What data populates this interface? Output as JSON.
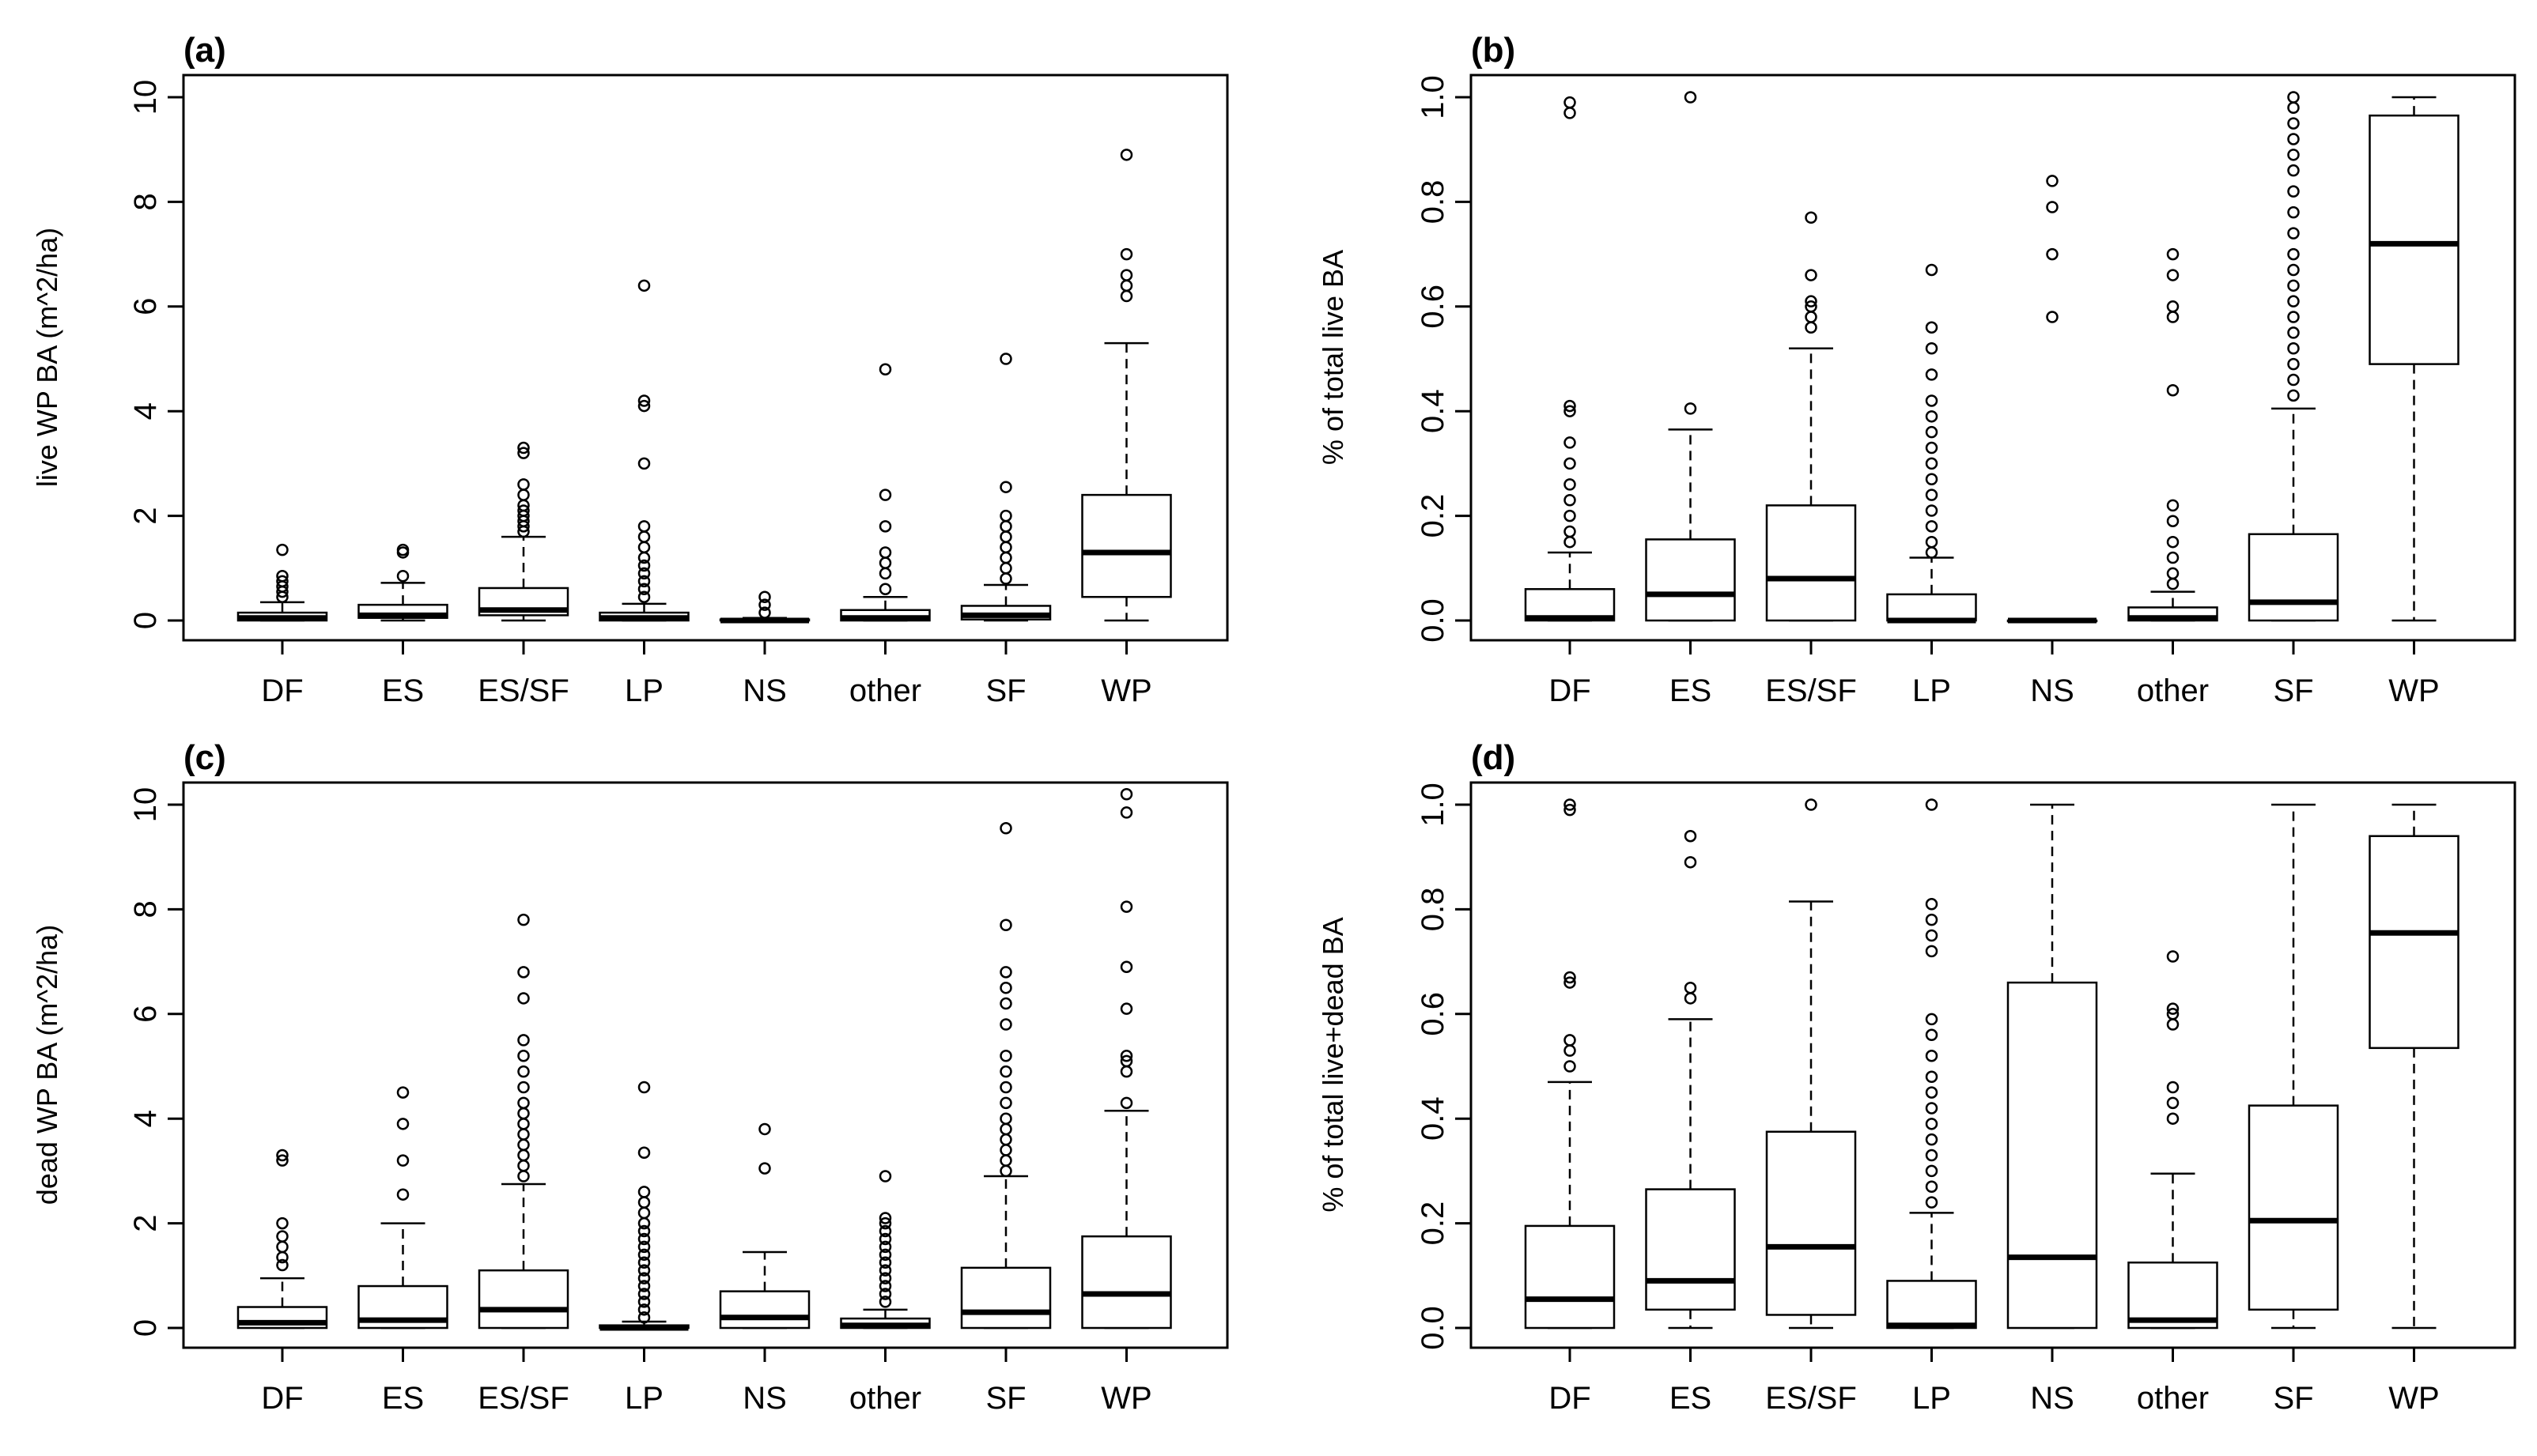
{
  "chart_data": [
    {
      "panel_label": "(a)",
      "type": "boxplot",
      "ylabel": "live WP BA (m^2/ha)",
      "categories": [
        "DF",
        "ES",
        "ES/SF",
        "LP",
        "NS",
        "other",
        "SF",
        "WP"
      ],
      "ylim": [
        0,
        10
      ],
      "yticks": [
        0,
        2,
        4,
        6,
        8,
        10
      ],
      "ytick_labels": [
        "0",
        "2",
        "4",
        "6",
        "8",
        "10"
      ],
      "boxes": [
        {
          "whislo": 0,
          "q1": 0.0,
          "med": 0.05,
          "q3": 0.15,
          "whishi": 0.35,
          "fliers": [
            0.45,
            0.55,
            0.65,
            0.75,
            0.85,
            1.35
          ]
        },
        {
          "whislo": 0,
          "q1": 0.05,
          "med": 0.1,
          "q3": 0.3,
          "whishi": 0.72,
          "fliers": [
            0.85,
            1.3,
            1.35
          ]
        },
        {
          "whislo": 0,
          "q1": 0.1,
          "med": 0.2,
          "q3": 0.62,
          "whishi": 1.6,
          "fliers": [
            1.7,
            1.8,
            1.9,
            2.0,
            2.1,
            2.2,
            2.4,
            2.6,
            3.2,
            3.3
          ]
        },
        {
          "whislo": 0,
          "q1": 0.0,
          "med": 0.05,
          "q3": 0.15,
          "whishi": 0.32,
          "fliers": [
            0.45,
            0.6,
            0.75,
            0.9,
            1.05,
            1.2,
            1.4,
            1.6,
            1.8,
            3.0,
            4.1,
            4.2,
            6.4
          ]
        },
        {
          "whislo": 0,
          "q1": 0.0,
          "med": 0.0,
          "q3": 0.02,
          "whishi": 0.05,
          "fliers": [
            0.15,
            0.3,
            0.45
          ]
        },
        {
          "whislo": 0,
          "q1": 0.0,
          "med": 0.05,
          "q3": 0.2,
          "whishi": 0.45,
          "fliers": [
            0.6,
            0.9,
            1.1,
            1.3,
            1.8,
            2.4,
            4.8
          ]
        },
        {
          "whislo": 0,
          "q1": 0.02,
          "med": 0.1,
          "q3": 0.28,
          "whishi": 0.68,
          "fliers": [
            0.8,
            1.0,
            1.2,
            1.4,
            1.6,
            1.8,
            2.0,
            2.55,
            5.0
          ]
        },
        {
          "whislo": 0,
          "q1": 0.45,
          "med": 1.3,
          "q3": 2.4,
          "whishi": 5.3,
          "fliers": [
            6.2,
            6.4,
            6.6,
            7.0,
            8.9
          ]
        }
      ]
    },
    {
      "panel_label": "(b)",
      "type": "boxplot",
      "ylabel": "% of total live BA",
      "categories": [
        "DF",
        "ES",
        "ES/SF",
        "LP",
        "NS",
        "other",
        "SF",
        "WP"
      ],
      "ylim": [
        0,
        1.0
      ],
      "yticks": [
        0,
        0.2,
        0.4,
        0.6,
        0.8,
        1.0
      ],
      "ytick_labels": [
        "0.0",
        "0.2",
        "0.4",
        "0.6",
        "0.8",
        "1.0"
      ],
      "boxes": [
        {
          "whislo": 0,
          "q1": 0.0,
          "med": 0.005,
          "q3": 0.06,
          "whishi": 0.13,
          "fliers": [
            0.15,
            0.17,
            0.2,
            0.23,
            0.26,
            0.3,
            0.34,
            0.4,
            0.41,
            0.97,
            0.99
          ]
        },
        {
          "whislo": 0,
          "q1": 0.0,
          "med": 0.05,
          "q3": 0.155,
          "whishi": 0.365,
          "fliers": [
            0.405,
            1.0
          ]
        },
        {
          "whislo": 0,
          "q1": 0.0,
          "med": 0.08,
          "q3": 0.22,
          "whishi": 0.52,
          "fliers": [
            0.56,
            0.58,
            0.6,
            0.61,
            0.66,
            0.77
          ]
        },
        {
          "whislo": 0,
          "q1": 0.0,
          "med": 0.0,
          "q3": 0.05,
          "whishi": 0.12,
          "fliers": [
            0.13,
            0.15,
            0.18,
            0.21,
            0.24,
            0.27,
            0.3,
            0.33,
            0.36,
            0.39,
            0.42,
            0.47,
            0.52,
            0.56,
            0.67
          ]
        },
        {
          "whislo": 0,
          "q1": 0.0,
          "med": 0.0,
          "q3": 0.0,
          "whishi": 0.0,
          "fliers": [
            0.58,
            0.7,
            0.79,
            0.84
          ]
        },
        {
          "whislo": 0,
          "q1": 0.0,
          "med": 0.005,
          "q3": 0.025,
          "whishi": 0.055,
          "fliers": [
            0.07,
            0.09,
            0.12,
            0.15,
            0.19,
            0.22,
            0.44,
            0.58,
            0.6,
            0.66,
            0.7
          ]
        },
        {
          "whislo": 0,
          "q1": 0.0,
          "med": 0.035,
          "q3": 0.165,
          "whishi": 0.405,
          "fliers": [
            0.43,
            0.46,
            0.49,
            0.52,
            0.55,
            0.58,
            0.61,
            0.64,
            0.67,
            0.7,
            0.74,
            0.78,
            0.82,
            0.86,
            0.89,
            0.92,
            0.95,
            0.98,
            1.0
          ]
        },
        {
          "whislo": 0,
          "q1": 0.49,
          "med": 0.72,
          "q3": 0.965,
          "whishi": 1.0,
          "fliers": []
        }
      ]
    },
    {
      "panel_label": "(c)",
      "type": "boxplot",
      "ylabel": "dead WP BA (m^2/ha)",
      "categories": [
        "DF",
        "ES",
        "ES/SF",
        "LP",
        "NS",
        "other",
        "SF",
        "WP"
      ],
      "ylim": [
        0,
        10
      ],
      "yticks": [
        0,
        2,
        4,
        6,
        8,
        10
      ],
      "ytick_labels": [
        "0",
        "2",
        "4",
        "6",
        "8",
        "10"
      ],
      "boxes": [
        {
          "whislo": 0,
          "q1": 0.0,
          "med": 0.1,
          "q3": 0.4,
          "whishi": 0.95,
          "fliers": [
            1.2,
            1.35,
            1.55,
            1.75,
            2.0,
            3.2,
            3.3
          ]
        },
        {
          "whislo": 0,
          "q1": 0.0,
          "med": 0.15,
          "q3": 0.8,
          "whishi": 2.0,
          "fliers": [
            2.55,
            3.2,
            3.9,
            4.5
          ]
        },
        {
          "whislo": 0,
          "q1": 0.0,
          "med": 0.35,
          "q3": 1.1,
          "whishi": 2.75,
          "fliers": [
            2.9,
            3.1,
            3.3,
            3.5,
            3.7,
            3.9,
            4.1,
            4.3,
            4.6,
            4.9,
            5.2,
            5.5,
            6.3,
            6.8,
            7.8
          ]
        },
        {
          "whislo": 0,
          "q1": 0.0,
          "med": 0.0,
          "q3": 0.05,
          "whishi": 0.12,
          "fliers": [
            0.2,
            0.35,
            0.5,
            0.65,
            0.8,
            0.95,
            1.1,
            1.25,
            1.4,
            1.55,
            1.7,
            1.85,
            2.0,
            2.2,
            2.4,
            2.6,
            3.35,
            4.6
          ]
        },
        {
          "whislo": 0,
          "q1": 0.0,
          "med": 0.2,
          "q3": 0.7,
          "whishi": 1.45,
          "fliers": [
            3.05,
            3.8
          ]
        },
        {
          "whislo": 0,
          "q1": 0.0,
          "med": 0.05,
          "q3": 0.18,
          "whishi": 0.35,
          "fliers": [
            0.5,
            0.65,
            0.8,
            0.95,
            1.1,
            1.25,
            1.4,
            1.55,
            1.7,
            1.85,
            2.0,
            2.1,
            2.9
          ]
        },
        {
          "whislo": 0,
          "q1": 0.0,
          "med": 0.3,
          "q3": 1.15,
          "whishi": 2.9,
          "fliers": [
            3.0,
            3.2,
            3.4,
            3.6,
            3.8,
            4.0,
            4.3,
            4.6,
            4.9,
            5.2,
            5.8,
            6.2,
            6.5,
            6.8,
            7.7,
            9.55
          ]
        },
        {
          "whislo": 0,
          "q1": 0.0,
          "med": 0.65,
          "q3": 1.75,
          "whishi": 4.15,
          "fliers": [
            4.3,
            4.9,
            5.1,
            5.2,
            6.1,
            6.9,
            8.05,
            9.85,
            10.2
          ]
        }
      ]
    },
    {
      "panel_label": "(d)",
      "type": "boxplot",
      "ylabel": "% of total live+dead BA",
      "categories": [
        "DF",
        "ES",
        "ES/SF",
        "LP",
        "NS",
        "other",
        "SF",
        "WP"
      ],
      "ylim": [
        0,
        1.0
      ],
      "yticks": [
        0,
        0.2,
        0.4,
        0.6,
        0.8,
        1.0
      ],
      "ytick_labels": [
        "0.0",
        "0.2",
        "0.4",
        "0.6",
        "0.8",
        "1.0"
      ],
      "boxes": [
        {
          "whislo": 0,
          "q1": 0.0,
          "med": 0.055,
          "q3": 0.195,
          "whishi": 0.47,
          "fliers": [
            0.5,
            0.53,
            0.55,
            0.66,
            0.67,
            0.99,
            1.0
          ]
        },
        {
          "whislo": 0,
          "q1": 0.035,
          "med": 0.09,
          "q3": 0.265,
          "whishi": 0.59,
          "fliers": [
            0.63,
            0.65,
            0.89,
            0.94
          ]
        },
        {
          "whislo": 0,
          "q1": 0.025,
          "med": 0.155,
          "q3": 0.375,
          "whishi": 0.815,
          "fliers": [
            1.0
          ]
        },
        {
          "whislo": 0,
          "q1": 0.0,
          "med": 0.005,
          "q3": 0.09,
          "whishi": 0.22,
          "fliers": [
            0.24,
            0.27,
            0.3,
            0.33,
            0.36,
            0.39,
            0.42,
            0.45,
            0.48,
            0.52,
            0.56,
            0.59,
            0.72,
            0.75,
            0.78,
            0.81,
            1.0
          ]
        },
        {
          "whislo": 0,
          "q1": 0.0,
          "med": 0.135,
          "q3": 0.66,
          "whishi": 1.0,
          "fliers": []
        },
        {
          "whislo": 0,
          "q1": 0.0,
          "med": 0.015,
          "q3": 0.125,
          "whishi": 0.295,
          "fliers": [
            0.4,
            0.43,
            0.46,
            0.58,
            0.6,
            0.61,
            0.71
          ]
        },
        {
          "whislo": 0,
          "q1": 0.035,
          "med": 0.205,
          "q3": 0.425,
          "whishi": 1.0,
          "fliers": []
        },
        {
          "whislo": 0,
          "q1": 0.535,
          "med": 0.755,
          "q3": 0.94,
          "whishi": 1.0,
          "fliers": []
        }
      ]
    }
  ]
}
